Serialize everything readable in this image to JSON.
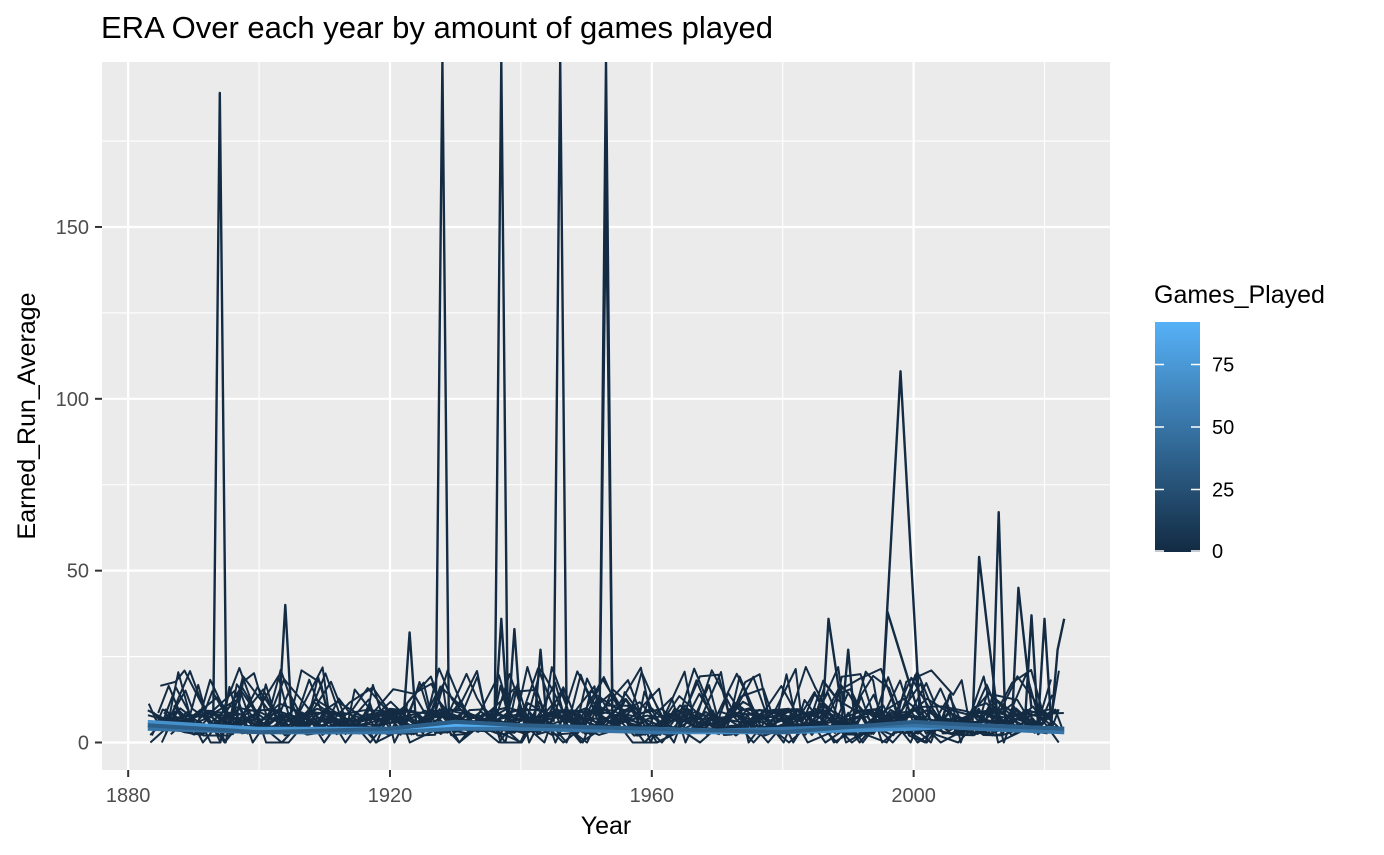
{
  "chart_data": {
    "type": "line",
    "title": "ERA Over each year by amount of games played",
    "xlabel": "Year",
    "ylabel": "Earned_Run_Average",
    "xlim": [
      1876,
      2030
    ],
    "ylim": [
      -8,
      198
    ],
    "x_ticks": [
      1880,
      1920,
      1960,
      2000
    ],
    "y_ticks": [
      0,
      50,
      100,
      150
    ],
    "grid": true,
    "legend": {
      "title": "Games_Played",
      "placement": "right",
      "type": "colorbar",
      "range": [
        0,
        92
      ],
      "ticks": [
        0,
        25,
        50,
        75
      ],
      "colors": [
        "#132b43",
        "#56b1f7"
      ]
    },
    "spikes": [
      {
        "x": [
          1893,
          1894,
          1895
        ],
        "y": [
          8,
          189,
          6
        ]
      },
      {
        "x": [
          1903,
          1904,
          1905
        ],
        "y": [
          7,
          40,
          6
        ]
      },
      {
        "x": [
          1922,
          1923,
          1924
        ],
        "y": [
          5,
          32,
          5
        ]
      },
      {
        "x": [
          1927,
          1928,
          1929
        ],
        "y": [
          8,
          198,
          5
        ]
      },
      {
        "x": [
          1936,
          1937,
          1938
        ],
        "y": [
          6,
          198,
          5
        ]
      },
      {
        "x": [
          1936,
          1937,
          1938
        ],
        "y": [
          5,
          36,
          7
        ]
      },
      {
        "x": [
          1938,
          1939,
          1940
        ],
        "y": [
          5,
          33,
          6
        ]
      },
      {
        "x": [
          1942,
          1943,
          1944
        ],
        "y": [
          4,
          27,
          5
        ]
      },
      {
        "x": [
          1945,
          1946,
          1947
        ],
        "y": [
          6,
          198,
          5
        ]
      },
      {
        "x": [
          1952,
          1953,
          1954
        ],
        "y": [
          6,
          198,
          5
        ]
      },
      {
        "x": [
          1952,
          1953,
          1954
        ],
        "y": [
          5,
          162,
          6
        ]
      },
      {
        "x": [
          1986,
          1987,
          1989
        ],
        "y": [
          5,
          36,
          10
        ]
      },
      {
        "x": [
          1989,
          1990,
          1991
        ],
        "y": [
          6,
          27,
          6
        ]
      },
      {
        "x": [
          1995,
          1996,
          2001
        ],
        "y": [
          5,
          38,
          7
        ]
      },
      {
        "x": [
          1995,
          1998,
          2001
        ],
        "y": [
          6,
          108,
          6
        ]
      },
      {
        "x": [
          2009,
          2010,
          2013
        ],
        "y": [
          6,
          54,
          5
        ]
      },
      {
        "x": [
          2012,
          2013,
          2014
        ],
        "y": [
          5,
          67,
          6
        ]
      },
      {
        "x": [
          2015,
          2016,
          2018
        ],
        "y": [
          5,
          45,
          10
        ]
      },
      {
        "x": [
          2017,
          2018,
          2019
        ],
        "y": [
          6,
          37,
          5
        ]
      },
      {
        "x": [
          2019,
          2020,
          2021
        ],
        "y": [
          5,
          36,
          6
        ]
      },
      {
        "x": [
          2021,
          2022,
          2023
        ],
        "y": [
          5,
          27,
          36
        ]
      }
    ],
    "baseline": [
      {
        "x": [
          1883,
          1900,
          1920,
          1930,
          1940,
          1960,
          1980,
          2000,
          2010,
          2023
        ],
        "y": [
          5,
          3,
          3,
          5,
          4,
          4,
          3,
          5,
          4,
          3
        ],
        "games": 90
      },
      {
        "x": [
          1883,
          1900,
          1920,
          1930,
          1940,
          1960,
          1980,
          2000,
          2010,
          2023
        ],
        "y": [
          6,
          4,
          4,
          6,
          5,
          3,
          3,
          4,
          5,
          4
        ],
        "games": 70
      },
      {
        "x": [
          1883,
          1900,
          1920,
          1930,
          1940,
          1960,
          1980,
          2000,
          2010,
          2023
        ],
        "y": [
          4,
          3,
          3,
          4,
          4,
          3,
          4,
          5,
          4,
          3
        ],
        "games": 50
      },
      {
        "x": [
          1883,
          1900,
          1920,
          1930,
          1940,
          1960,
          1980,
          2000,
          2010,
          2023
        ],
        "y": [
          5,
          3,
          4,
          6,
          5,
          4,
          3,
          6,
          5,
          4
        ],
        "games": 35
      }
    ]
  }
}
